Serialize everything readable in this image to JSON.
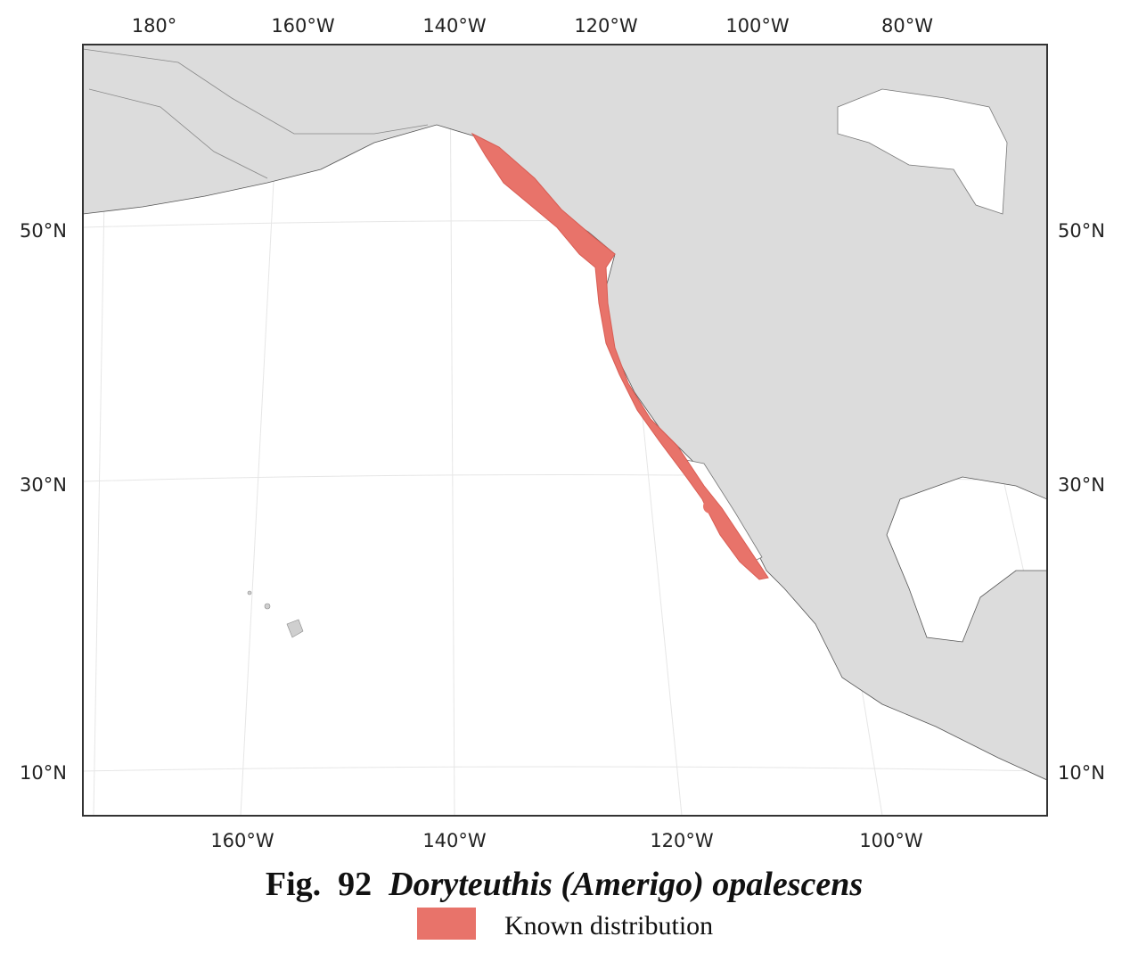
{
  "map": {
    "top_labels": [
      "180°",
      "160°W",
      "140°W",
      "120°W",
      "100°W",
      "80°W"
    ],
    "bottom_labels": [
      "160°W",
      "140°W",
      "120°W",
      "100°W"
    ],
    "left_labels": [
      "50°N",
      "30°N",
      "10°N"
    ],
    "right_labels": [
      "50°N",
      "30°N",
      "10°N"
    ]
  },
  "caption": {
    "figure": "Fig.  92",
    "species": "Doryteuthis (Amerigo) opalescens"
  },
  "legend": {
    "label": "Known distribution"
  }
}
